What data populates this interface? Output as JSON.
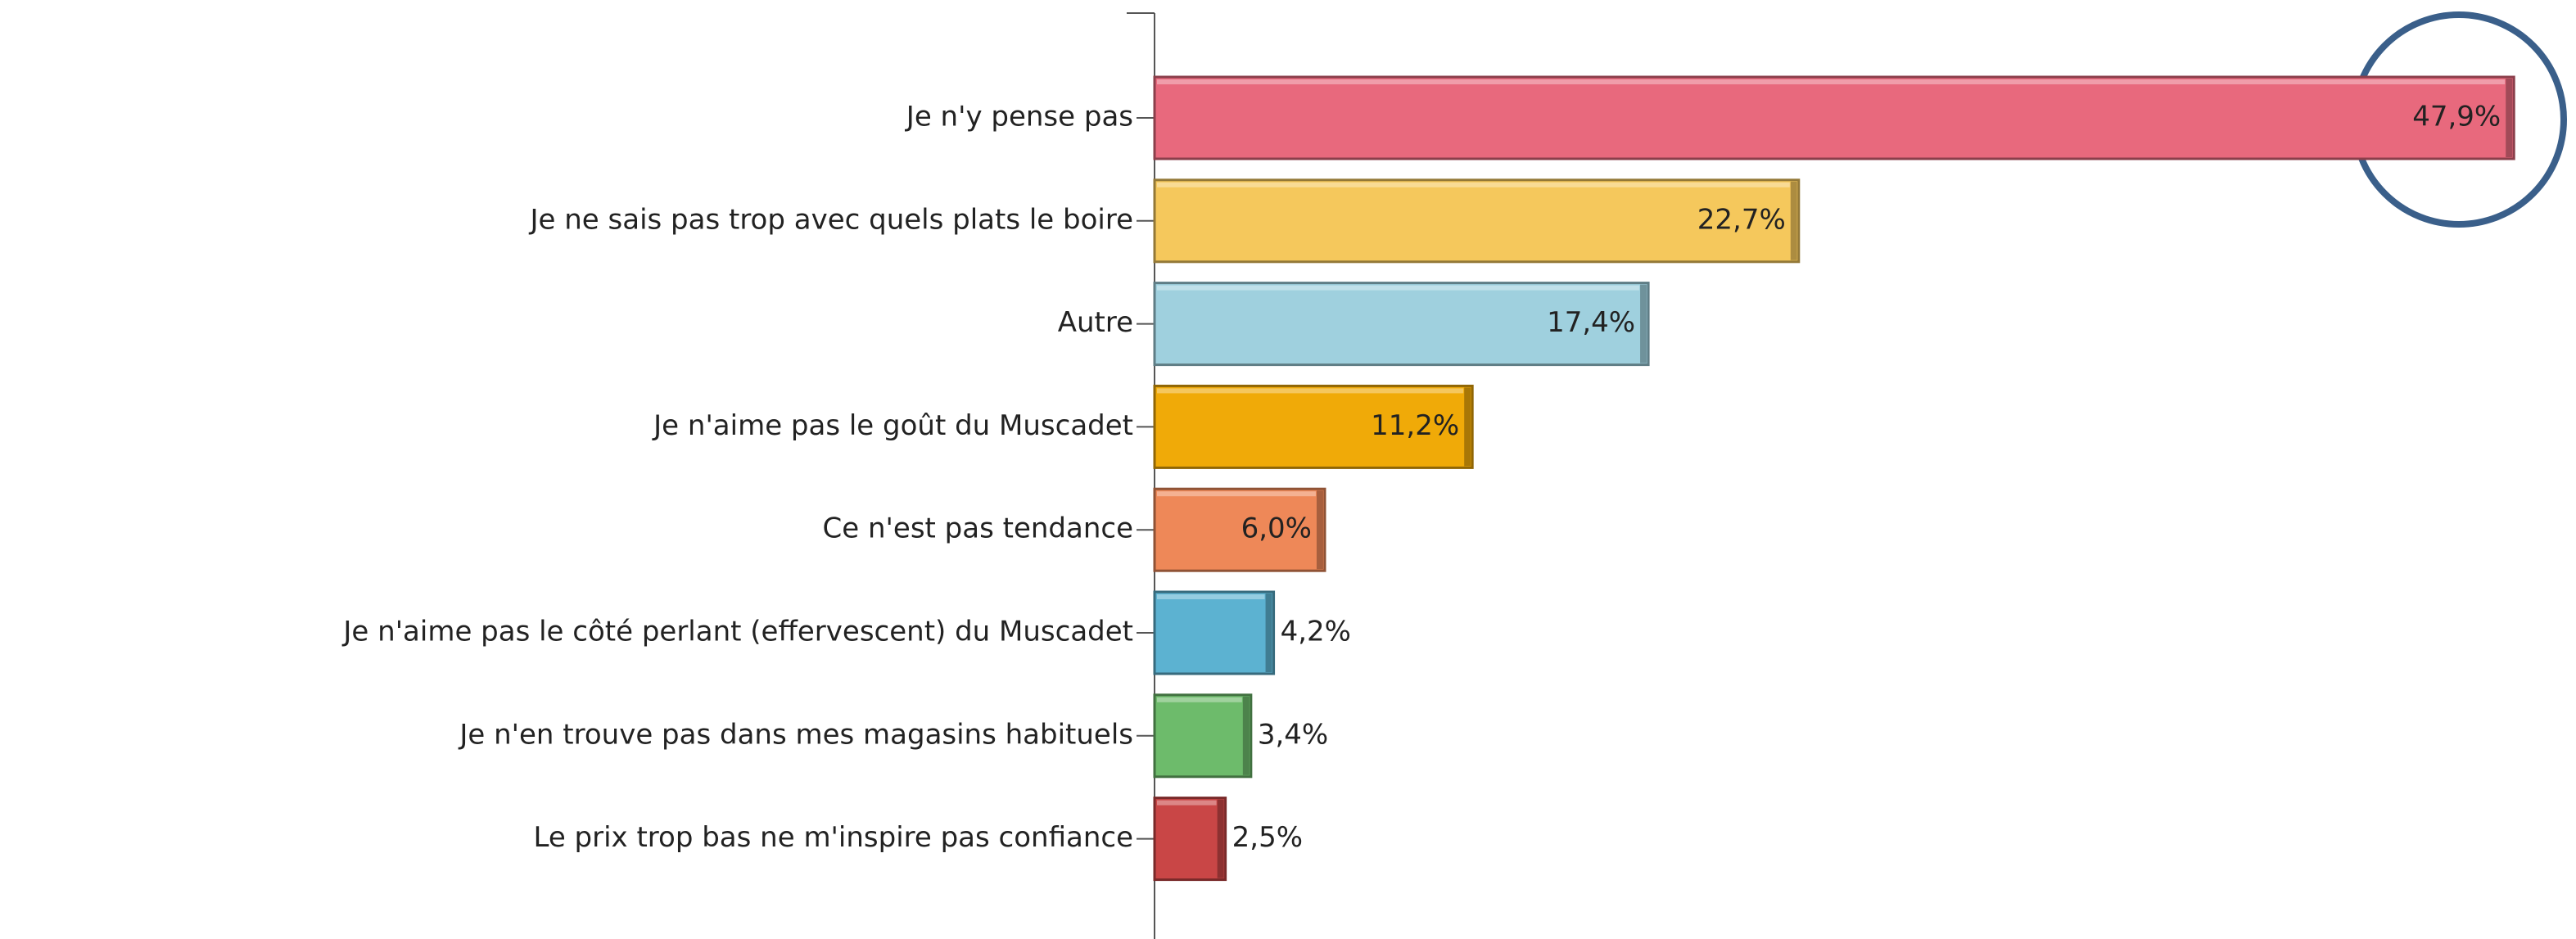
{
  "chart_data": {
    "type": "bar",
    "orientation": "horizontal",
    "categories": [
      "Je n'y pense pas",
      "Je ne sais pas trop avec quels plats le boire",
      "Autre",
      "Je n'aime pas le goût du Muscadet",
      "Ce n'est pas tendance",
      "Je n'aime pas le côté perlant (effervescent) du Muscadet",
      "Je n'en trouve pas dans mes magasins habituels",
      "Le prix trop bas ne m'inspire pas confiance"
    ],
    "values": [
      47.9,
      22.7,
      17.4,
      11.2,
      6.0,
      4.2,
      3.4,
      2.5
    ],
    "value_labels": [
      "47,9%",
      "22,7%",
      "17,4%",
      "11,2%",
      "6,0%",
      "4,2%",
      "3,4%",
      "2,5%"
    ],
    "colors": [
      "#e8697d",
      "#f5c85c",
      "#9fd0de",
      "#f0aa08",
      "#ee8858",
      "#5cb2d1",
      "#6dbb6b",
      "#c94646"
    ],
    "xlim": [
      0,
      50
    ]
  }
}
